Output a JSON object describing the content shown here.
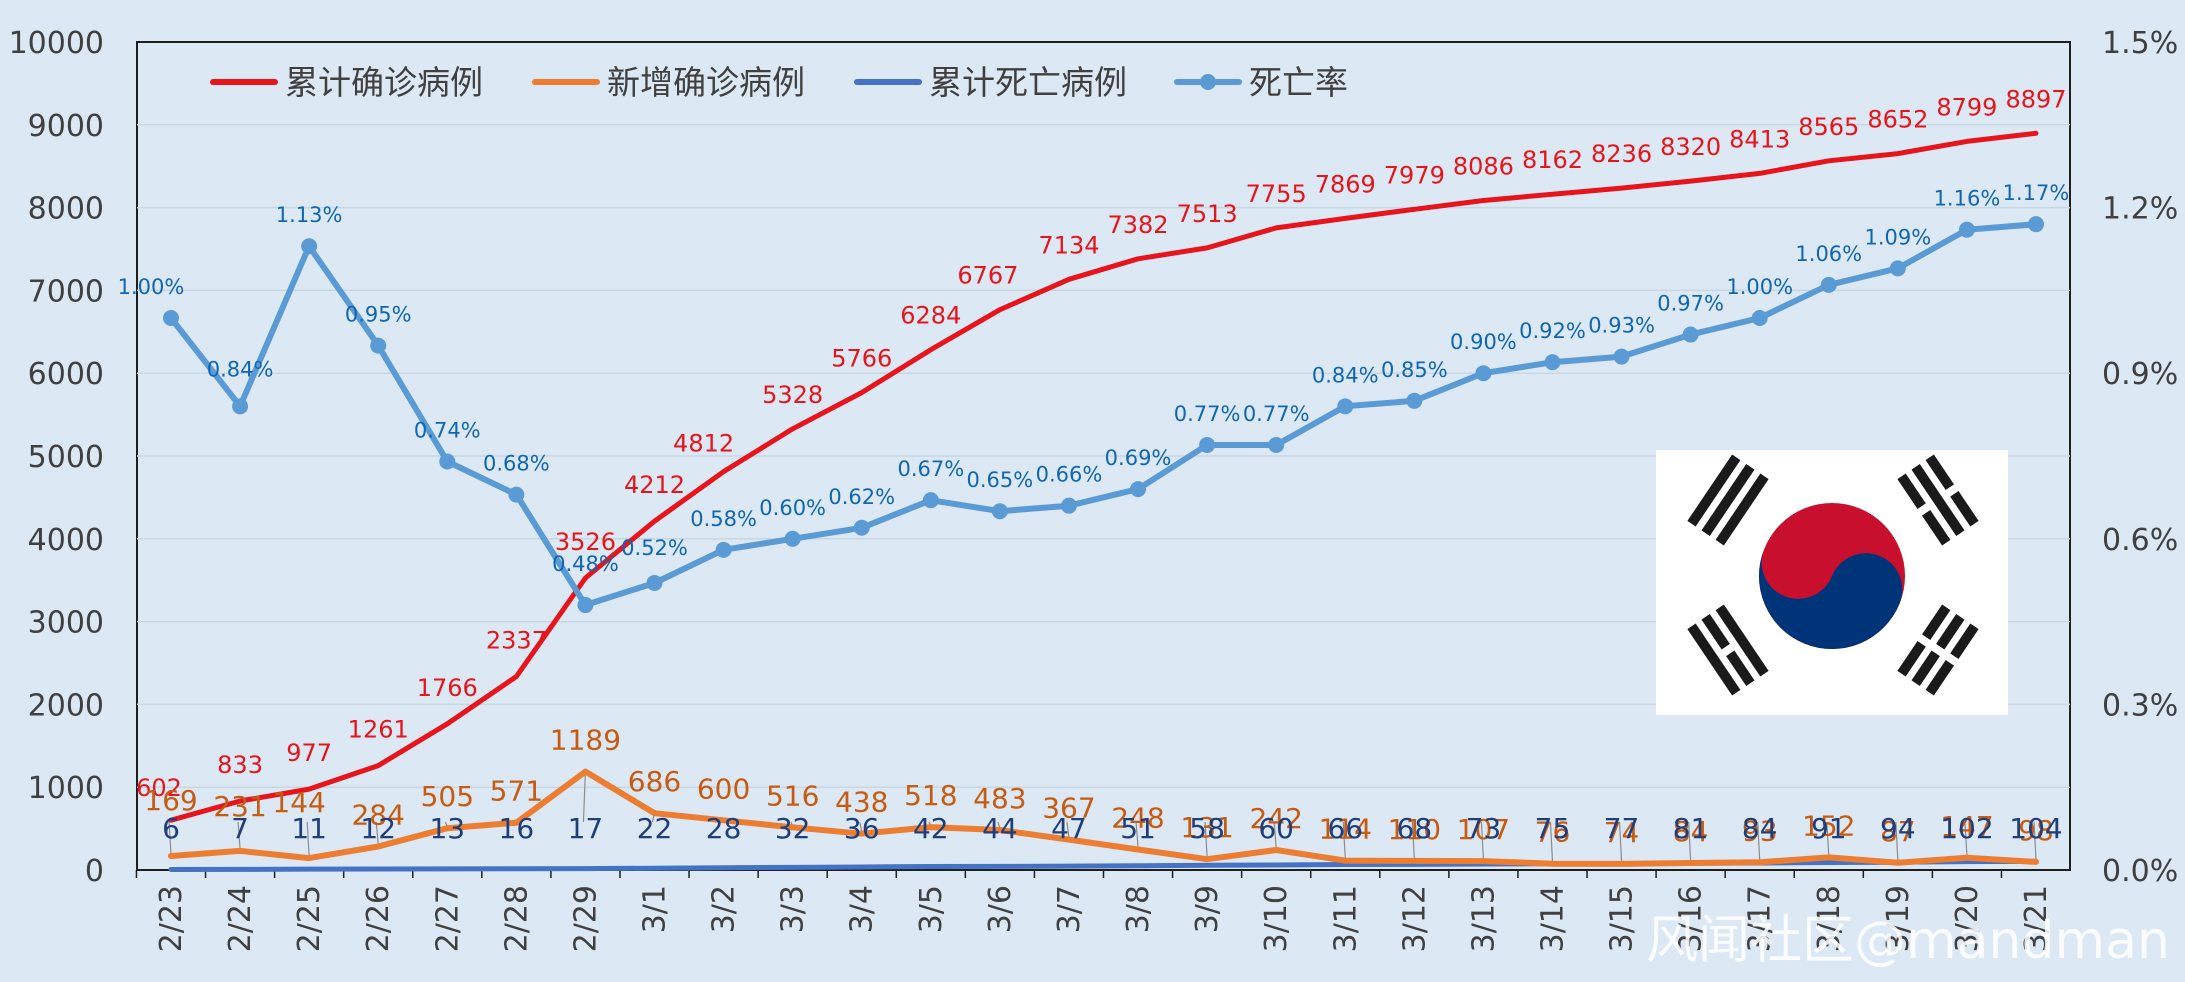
{
  "chart_data": {
    "type": "line",
    "categories": [
      "2/23",
      "2/24",
      "2/25",
      "2/26",
      "2/27",
      "2/28",
      "2/29",
      "3/1",
      "3/2",
      "3/3",
      "3/4",
      "3/5",
      "3/6",
      "3/7",
      "3/8",
      "3/9",
      "3/10",
      "3/11",
      "3/12",
      "3/13",
      "3/14",
      "3/15",
      "3/16",
      "3/17",
      "3/18",
      "3/19",
      "3/20",
      "3/21"
    ],
    "y_left": {
      "min": 0,
      "max": 10000,
      "ticks": [
        "0",
        "1000",
        "2000",
        "3000",
        "4000",
        "5000",
        "6000",
        "7000",
        "8000",
        "9000",
        "10000"
      ]
    },
    "y_right": {
      "min": 0,
      "max": 1.5,
      "ticks": [
        "0.0%",
        "0.3%",
        "0.6%",
        "0.9%",
        "1.2%",
        "1.5%"
      ]
    },
    "legend_position": "top-left",
    "series": [
      {
        "name": "累计确诊病例",
        "axis": "left",
        "color": "#e8141b",
        "values": [
          602,
          833,
          977,
          1261,
          1766,
          2337,
          3526,
          4212,
          4812,
          5328,
          5766,
          6284,
          6767,
          7134,
          7382,
          7513,
          7755,
          7869,
          7979,
          8086,
          8162,
          8236,
          8320,
          8413,
          8565,
          8652,
          8799,
          8897
        ]
      },
      {
        "name": "新增确诊病例",
        "axis": "left",
        "color": "#ed7d31",
        "values": [
          169,
          231,
          144,
          284,
          505,
          571,
          1189,
          686,
          600,
          516,
          438,
          518,
          483,
          367,
          248,
          131,
          242,
          114,
          110,
          107,
          76,
          74,
          84,
          93,
          152,
          87,
          147,
          98
        ]
      },
      {
        "name": "累计死亡病例",
        "axis": "left",
        "color": "#4472c4",
        "values": [
          6,
          7,
          11,
          12,
          13,
          16,
          17,
          22,
          28,
          32,
          36,
          42,
          44,
          47,
          51,
          58,
          60,
          66,
          68,
          73,
          75,
          77,
          81,
          84,
          91,
          94,
          102,
          104
        ]
      },
      {
        "name": "死亡率",
        "axis": "right",
        "color": "#5b9bd5",
        "values": [
          1.0,
          0.84,
          1.13,
          0.95,
          0.74,
          0.68,
          0.48,
          0.52,
          0.58,
          0.6,
          0.62,
          0.67,
          0.65,
          0.66,
          0.69,
          0.77,
          0.77,
          0.84,
          0.85,
          0.9,
          0.92,
          0.93,
          0.97,
          1.0,
          1.06,
          1.09,
          1.16,
          1.17
        ],
        "labels": [
          "1.00%",
          "0.84%",
          "1.13%",
          "0.95%",
          "0.74%",
          "0.68%",
          "0.48%",
          "0.52%",
          "0.58%",
          "0.60%",
          "0.62%",
          "0.67%",
          "0.65%",
          "0.66%",
          "0.69%",
          "0.77%",
          "0.77%",
          "0.84%",
          "0.85%",
          "0.90%",
          "0.92%",
          "0.93%",
          "0.97%",
          "1.00%",
          "1.06%",
          "1.09%",
          "1.16%",
          "1.17%"
        ]
      }
    ]
  },
  "flag": {
    "name": "south-korea-flag",
    "red": "#c8102e",
    "blue": "#003478",
    "black": "#1a1a1a"
  },
  "watermark": "风闻社区@mandman"
}
